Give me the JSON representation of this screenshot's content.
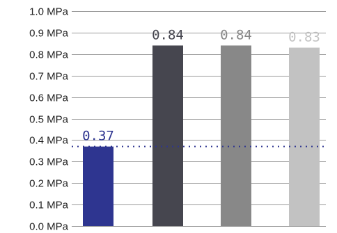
{
  "chart_data": {
    "type": "bar",
    "title": "",
    "xlabel": "",
    "ylabel": "",
    "ylim": [
      0,
      1.0
    ],
    "y_ticks": [
      0.0,
      0.1,
      0.2,
      0.3,
      0.4,
      0.5,
      0.6,
      0.7,
      0.8,
      0.9,
      1.0
    ],
    "y_tick_labels": [
      "0.0 MPa",
      "0.1 MPa",
      "0.2 MPa",
      "0.3 MPa",
      "0.4 MPa",
      "0.5 MPa",
      "0.6 MPa",
      "0.7 MPa",
      "0.8 MPa",
      "0.9 MPa",
      "1.0 MPa"
    ],
    "grid": true,
    "legend": "none",
    "values": [
      0.37,
      0.84,
      0.84,
      0.83
    ],
    "data_labels": [
      "0.37",
      "0.84",
      "0.84",
      "0.83"
    ],
    "bar_colors": [
      "#2e3590",
      "#46464f",
      "#888888",
      "#c2c2c2"
    ],
    "label_colors": [
      "#2e3590",
      "#46464f",
      "#888888",
      "#c2c2c2"
    ],
    "reference_line": {
      "value": 0.37,
      "color": "#2e3590",
      "style": "dotted"
    }
  }
}
